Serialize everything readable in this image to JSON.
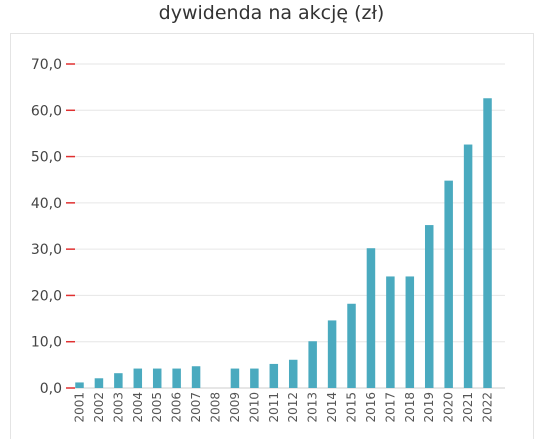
{
  "chart_data": {
    "type": "bar",
    "title": "dywidenda na akcję (zł)",
    "xlabel": "",
    "ylabel": "",
    "ylim": [
      0,
      70
    ],
    "yticks": [
      0,
      10,
      20,
      30,
      40,
      50,
      60,
      70
    ],
    "ytick_labels": [
      "0,0",
      "10,0",
      "20,0",
      "30,0",
      "40,0",
      "50,0",
      "60,0",
      "70,0"
    ],
    "categories": [
      "2001",
      "2002",
      "2003",
      "2004",
      "2005",
      "2006",
      "2007",
      "2008",
      "2009",
      "2010",
      "2011",
      "2012",
      "2013",
      "2014",
      "2015",
      "2016",
      "2017",
      "2018",
      "2019",
      "2020",
      "2021",
      "2022"
    ],
    "values": [
      1.2,
      2.1,
      3.2,
      4.2,
      4.2,
      4.2,
      4.7,
      0,
      4.2,
      4.2,
      5.2,
      6.1,
      10.1,
      14.6,
      18.2,
      30.2,
      24.1,
      24.1,
      35.2,
      44.8,
      52.6,
      62.6
    ],
    "bar_color": "#4aaabf",
    "tick_mark_color": "#e03030",
    "grid": true,
    "legend": "none"
  }
}
